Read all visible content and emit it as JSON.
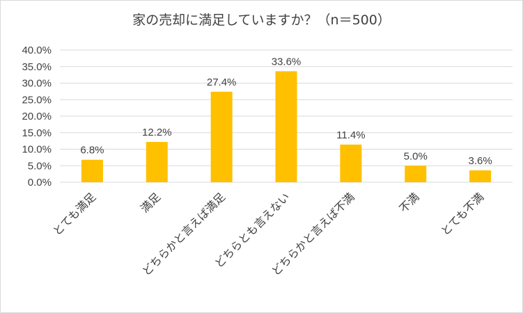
{
  "chart_data": {
    "type": "bar",
    "title": "家の売却に満足していますか？（n＝500）",
    "categories": [
      "とても満足",
      "満足",
      "どちらかと言えば満足",
      "どちらとも言えない",
      "どちらかと言えば不満",
      "不満",
      "とても不満"
    ],
    "values": [
      6.8,
      12.2,
      27.4,
      33.6,
      11.4,
      5.0,
      3.6
    ],
    "data_labels": [
      "6.8%",
      "12.2%",
      "27.4%",
      "33.6%",
      "11.4%",
      "5.0%",
      "3.6%"
    ],
    "yticks": [
      "0.0%",
      "5.0%",
      "10.0%",
      "15.0%",
      "20.0%",
      "25.0%",
      "30.0%",
      "35.0%",
      "40.0%"
    ],
    "ylim": [
      0,
      40
    ],
    "grid": true,
    "legend": "none",
    "bar_color": "#FFC000",
    "grid_color": "#d9d9d9",
    "xlabel": "",
    "ylabel": ""
  }
}
